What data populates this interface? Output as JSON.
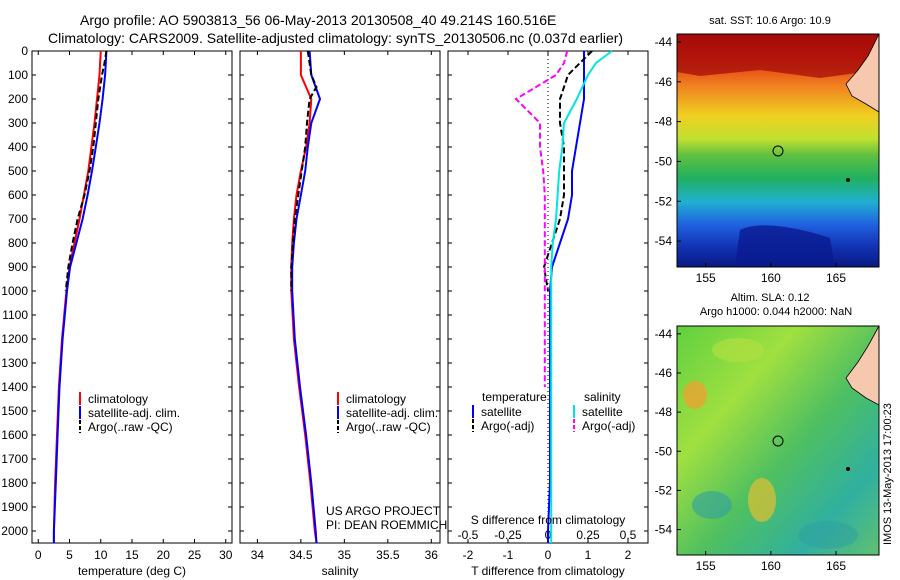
{
  "header": {
    "line1": "Argo profile: AO 5903813_56 06-May-2013 20130508_40 49.214S 160.516E",
    "line2": "Climatology: CARS2009. Satellite-adjusted climatology: synTS_20130506.nc (0.037d earlier)"
  },
  "colors": {
    "climatology": "#ff0000",
    "satellite": "#0000ff",
    "argo": "#000000",
    "sal_satellite": "#00e5e5",
    "sal_argo": "#ff00ff"
  },
  "panels": {
    "temperature": {
      "xlabel": "temperature (deg C)",
      "xticks": [
        "0",
        "5",
        "10",
        "15",
        "20",
        "25",
        "30"
      ],
      "legend": [
        "climatology",
        "satellite-adj. clim.",
        "Argo(..raw -QC)"
      ]
    },
    "salinity": {
      "xlabel": "salinity",
      "xticks": [
        "34",
        "34.5",
        "35",
        "35.5",
        "36"
      ],
      "legend": [
        "climatology",
        "satellite-adj. clim.",
        "Argo(..raw -QC)"
      ],
      "credit1": "US ARGO PROJECT",
      "credit2": "PI: DEAN ROEMMICH"
    },
    "difference": {
      "xlabel": "T difference from climatology",
      "toplabel": "S difference from climatology",
      "xticks": [
        "-2",
        "-1",
        "0",
        "1",
        "2"
      ],
      "sticks": [
        "-0.5",
        "-0.25",
        "0",
        "0.25",
        "0.5"
      ],
      "leg_t_title": "temperature",
      "leg_s_title": "salinity",
      "leg_t": [
        "satellite",
        "Argo(-adj)"
      ],
      "leg_s": [
        "satellite",
        "Argo(-adj)"
      ]
    }
  },
  "yticks": [
    "0",
    "100",
    "200",
    "300",
    "400",
    "500",
    "600",
    "700",
    "800",
    "900",
    "1000",
    "1100",
    "1200",
    "1300",
    "1400",
    "1500",
    "1600",
    "1700",
    "1800",
    "1900",
    "2000"
  ],
  "maps": {
    "sst_title": "sat. SST: 10.6 Argo: 10.9",
    "sla_title1": "Altim. SLA: 0.12",
    "sla_title2": "Argo h1000: 0.044 h2000: NaN",
    "lat_ticks": [
      "-44",
      "-46",
      "-48",
      "-50",
      "-52",
      "-54"
    ],
    "lon_ticks": [
      "155",
      "160",
      "165"
    ],
    "stamp": "IMOS 13-May-2013 17:00:23"
  },
  "chart_data": [
    {
      "type": "line",
      "title": "",
      "xlabel": "temperature (deg C)",
      "ylabel": "",
      "xlim": [
        -1,
        31
      ],
      "ylim": [
        2050,
        0
      ],
      "series": [
        {
          "name": "climatology",
          "depth": [
            0,
            50,
            100,
            200,
            300,
            400,
            500,
            600,
            700,
            800,
            900,
            1000,
            1200,
            1400,
            1600,
            1800,
            2000,
            2050
          ],
          "values": [
            10.0,
            9.9,
            9.8,
            9.4,
            9.0,
            8.5,
            8.0,
            7.3,
            6.6,
            5.8,
            5.0,
            4.5,
            3.8,
            3.3,
            3.0,
            2.7,
            2.5,
            2.5
          ]
        },
        {
          "name": "satellite-adj. clim.",
          "depth": [
            0,
            50,
            100,
            200,
            300,
            400,
            500,
            600,
            700,
            800,
            900,
            1000,
            1200,
            1400,
            1600,
            1800,
            2000,
            2050
          ],
          "values": [
            10.9,
            10.8,
            10.7,
            10.3,
            9.8,
            9.2,
            8.6,
            7.9,
            7.1,
            6.1,
            5.1,
            4.6,
            3.9,
            3.4,
            3.1,
            2.8,
            2.5,
            2.5
          ]
        },
        {
          "name": "Argo(..raw -QC)",
          "depth": [
            0,
            50,
            100,
            200,
            300,
            400,
            500,
            600,
            700,
            800,
            900,
            1000
          ],
          "values": [
            10.9,
            10.6,
            10.2,
            9.6,
            9.2,
            8.8,
            8.2,
            7.4,
            6.3,
            5.5,
            4.8,
            4.4
          ]
        }
      ]
    },
    {
      "type": "line",
      "title": "",
      "xlabel": "salinity",
      "ylabel": "",
      "xlim": [
        33.8,
        36.1
      ],
      "ylim": [
        2050,
        0
      ],
      "series": [
        {
          "name": "climatology",
          "depth": [
            0,
            100,
            200,
            300,
            400,
            500,
            600,
            700,
            800,
            900,
            1000,
            1200,
            1400,
            1600,
            1800,
            2000,
            2050
          ],
          "values": [
            34.5,
            34.5,
            34.62,
            34.6,
            34.56,
            34.5,
            34.45,
            34.42,
            34.4,
            34.39,
            34.39,
            34.42,
            34.48,
            34.55,
            34.61,
            34.66,
            34.68
          ]
        },
        {
          "name": "satellite-adj. clim.",
          "depth": [
            0,
            100,
            200,
            300,
            400,
            500,
            600,
            700,
            800,
            900,
            1000,
            1200,
            1400,
            1600,
            1800,
            2000,
            2050
          ],
          "values": [
            34.6,
            34.62,
            34.72,
            34.62,
            34.58,
            34.55,
            34.5,
            34.45,
            34.42,
            34.4,
            34.4,
            34.43,
            34.49,
            34.56,
            34.62,
            34.67,
            34.68
          ]
        },
        {
          "name": "Argo(..raw -QC)",
          "depth": [
            0,
            100,
            150,
            200,
            300,
            400,
            500,
            600,
            700,
            800,
            900,
            1000
          ],
          "values": [
            34.58,
            34.62,
            34.68,
            34.6,
            34.57,
            34.55,
            34.51,
            34.47,
            34.43,
            34.41,
            34.39,
            34.39
          ]
        }
      ]
    },
    {
      "type": "line",
      "title": "",
      "xlabel": "T difference from climatology",
      "ylabel": "",
      "xlim": [
        -2.5,
        2.5
      ],
      "ylim": [
        2050,
        0
      ],
      "series": [
        {
          "name": "temperature satellite",
          "depth": [
            0,
            50,
            100,
            200,
            300,
            400,
            500,
            600,
            700,
            800,
            900,
            1000,
            1200,
            1400,
            1600,
            1800,
            2000,
            2050
          ],
          "values": [
            0.9,
            0.9,
            0.9,
            0.9,
            0.8,
            0.7,
            0.6,
            0.6,
            0.5,
            0.3,
            0.1,
            0.05,
            0.05,
            0.05,
            0.05,
            0.05,
            0.0,
            0.0
          ]
        },
        {
          "name": "temperature Argo(-adj)",
          "depth": [
            0,
            50,
            100,
            200,
            300,
            400,
            500,
            600,
            700,
            800,
            900,
            1000
          ],
          "values": [
            1.1,
            0.8,
            0.5,
            0.3,
            0.3,
            0.4,
            0.4,
            0.4,
            0.3,
            0.1,
            -0.1,
            0.0
          ]
        },
        {
          "name": "salinity satellite",
          "depth": [
            0,
            50,
            100,
            200,
            300,
            400,
            500,
            600,
            700,
            800,
            900,
            1000,
            1200,
            1400,
            1600,
            1800,
            2000,
            2050
          ],
          "values": [
            0.4,
            0.3,
            0.25,
            0.18,
            0.1,
            0.09,
            0.07,
            0.06,
            0.05,
            0.03,
            0.02,
            0.02,
            0.02,
            0.02,
            0.02,
            0.02,
            0.02,
            0.02
          ]
        },
        {
          "name": "salinity Argo(-adj)",
          "depth": [
            0,
            50,
            100,
            200,
            300,
            400,
            500,
            600,
            700,
            800,
            900,
            1000,
            1200,
            1400
          ],
          "values": [
            0.12,
            0.1,
            0.05,
            -0.2,
            -0.05,
            -0.05,
            -0.03,
            -0.02,
            -0.02,
            -0.02,
            -0.02,
            -0.02,
            -0.02,
            -0.02
          ]
        }
      ]
    }
  ]
}
